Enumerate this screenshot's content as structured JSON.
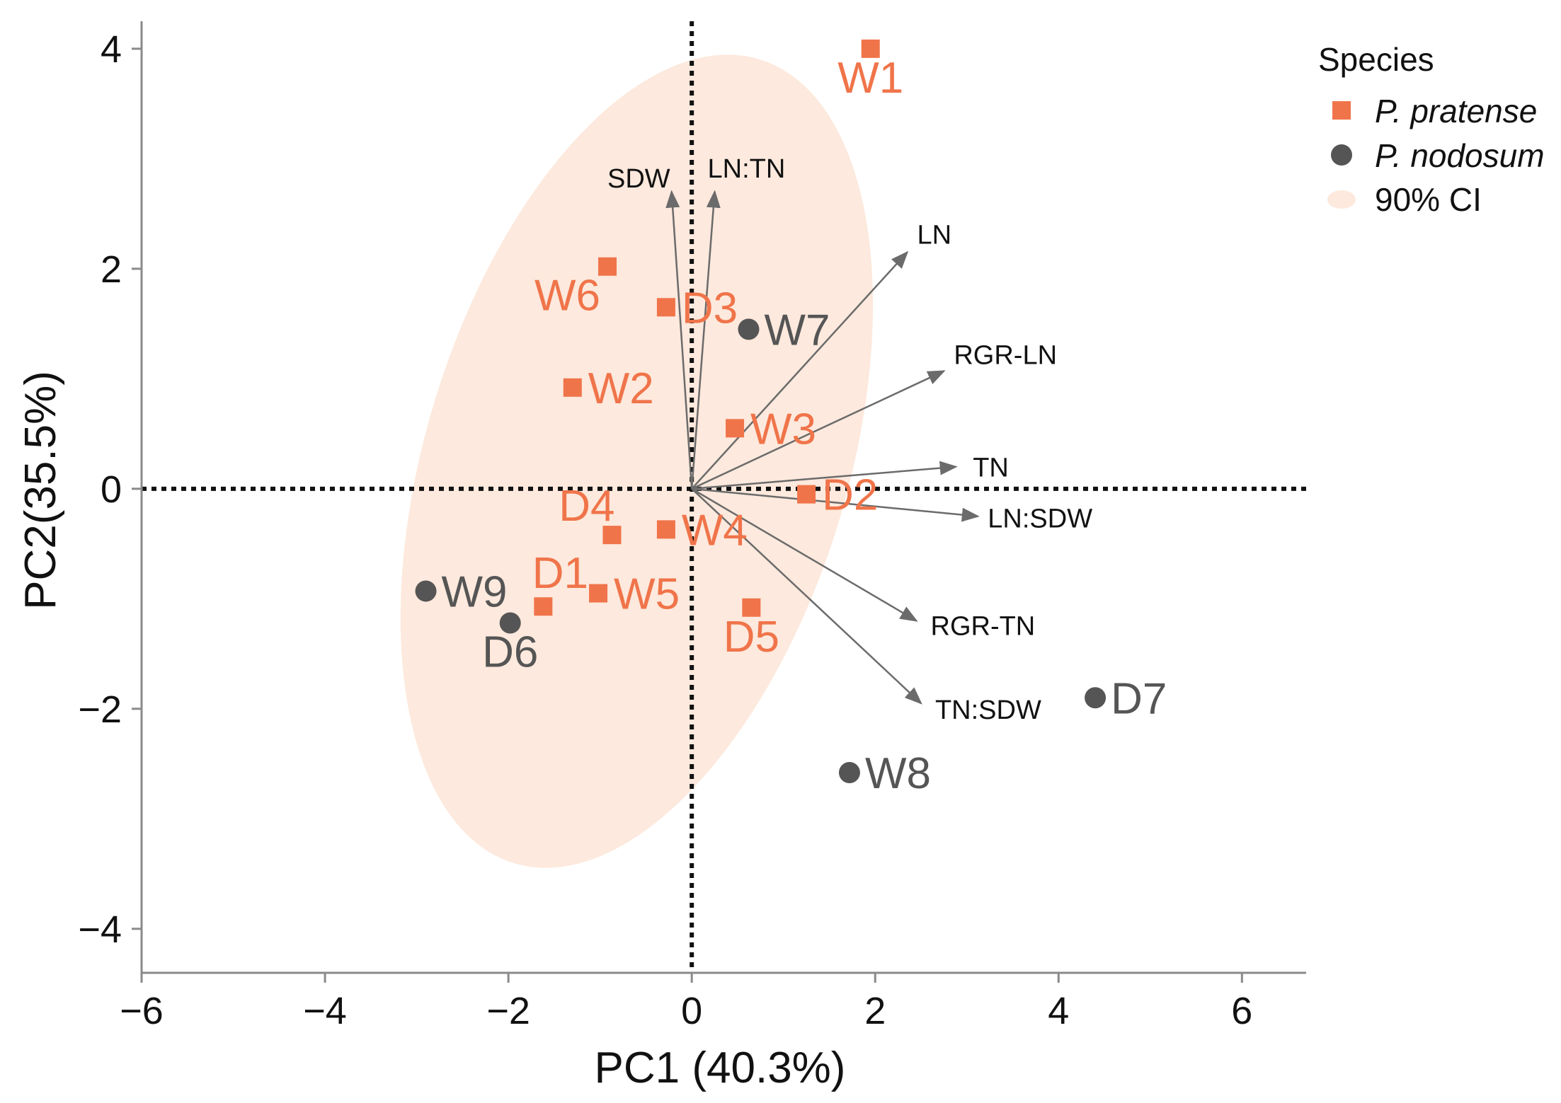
{
  "chart_data": {
    "type": "scatter",
    "subtype": "pca-biplot",
    "xlabel": "PC1 (40.3%)",
    "ylabel": "PC2(35.5%)",
    "xlim": [
      -6,
      6.7
    ],
    "ylim": [
      -4.4,
      4.25
    ],
    "xticks": [
      -6,
      -4,
      -2,
      0,
      2,
      4,
      6
    ],
    "yticks": [
      -4,
      -2,
      0,
      2,
      4
    ],
    "xtick_labels": [
      "−6",
      "−4",
      "−2",
      "0",
      "2",
      "4",
      "6"
    ],
    "ytick_labels": [
      "−4",
      "−2",
      "0",
      "2",
      "4"
    ],
    "reference_lines": {
      "x": 0,
      "y": 0,
      "style": "dotted"
    },
    "legend": {
      "title": "Species",
      "position": "right",
      "entries": [
        {
          "label": "P. pratense",
          "shape": "square",
          "color": "#f0744a"
        },
        {
          "label": "P. nodosum",
          "shape": "circle",
          "color": "#555555"
        },
        {
          "label": "90% CI",
          "shape": "ellipse",
          "color": "#fde9dd"
        }
      ]
    },
    "ellipse": {
      "label": "90% CI",
      "center": [
        -0.6,
        0.25
      ],
      "semi_axes": [
        2.3,
        3.82
      ],
      "rotation_deg": -17,
      "color": "#fde9dd"
    },
    "series": [
      {
        "name": "P. pratense",
        "shape": "square",
        "color": "#f0744a",
        "label_color": "#f0744a",
        "points": [
          {
            "label": "W1",
            "x": 1.95,
            "y": 4.0,
            "label_pos": "below"
          },
          {
            "label": "W6",
            "x": -0.92,
            "y": 2.02,
            "label_pos": "below-left"
          },
          {
            "label": "D3",
            "x": -0.28,
            "y": 1.65,
            "label_pos": "right"
          },
          {
            "label": "W2",
            "x": -1.3,
            "y": 0.92,
            "label_pos": "right"
          },
          {
            "label": "W3",
            "x": 0.47,
            "y": 0.55,
            "label_pos": "right"
          },
          {
            "label": "D2",
            "x": 1.25,
            "y": -0.05,
            "label_pos": "right"
          },
          {
            "label": "D4",
            "x": -0.87,
            "y": -0.42,
            "label_pos": "above-left"
          },
          {
            "label": "W4",
            "x": -0.28,
            "y": -0.37,
            "label_pos": "right"
          },
          {
            "label": "D1",
            "x": -1.62,
            "y": -1.07,
            "label_pos": "above"
          },
          {
            "label": "W5",
            "x": -1.02,
            "y": -0.95,
            "label_pos": "right"
          },
          {
            "label": "D5",
            "x": 0.65,
            "y": -1.08,
            "label_pos": "below"
          }
        ]
      },
      {
        "name": "P. nodosum",
        "shape": "circle",
        "color": "#555555",
        "label_color": "#555555",
        "points": [
          {
            "label": "W7",
            "x": 0.62,
            "y": 1.45,
            "label_pos": "right"
          },
          {
            "label": "W9",
            "x": -2.9,
            "y": -0.93,
            "label_pos": "right"
          },
          {
            "label": "D6",
            "x": -1.98,
            "y": -1.22,
            "label_pos": "below"
          },
          {
            "label": "D7",
            "x": 4.4,
            "y": -1.9,
            "label_pos": "right"
          },
          {
            "label": "W8",
            "x": 1.72,
            "y": -2.58,
            "label_pos": "right"
          }
        ]
      }
    ],
    "loadings": [
      {
        "label": "SDW",
        "x": -0.22,
        "y": 2.7
      },
      {
        "label": "LN:TN",
        "x": 0.25,
        "y": 2.7
      },
      {
        "label": "LN",
        "x": 2.35,
        "y": 2.15
      },
      {
        "label": "RGR-LN",
        "x": 2.75,
        "y": 1.07
      },
      {
        "label": "TN",
        "x": 2.88,
        "y": 0.2
      },
      {
        "label": "LN:SDW",
        "x": 3.12,
        "y": -0.25
      },
      {
        "label": "RGR-TN",
        "x": 2.45,
        "y": -1.2
      },
      {
        "label": "TN:SDW",
        "x": 2.5,
        "y": -1.95
      }
    ]
  }
}
